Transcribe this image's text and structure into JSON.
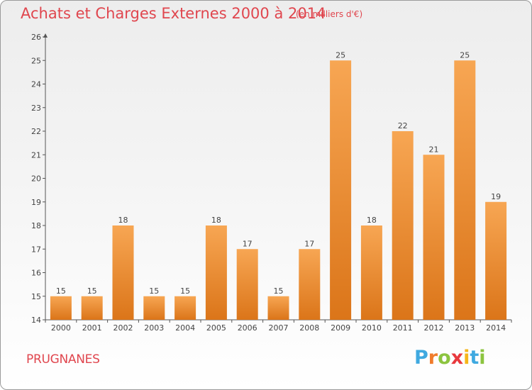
{
  "title": "Achats et Charges Externes 2000 à 2014",
  "subtitle": "(en milliers d'€)",
  "location": "PRUGNANES",
  "brand": {
    "letters": [
      "P",
      "r",
      "o",
      "x",
      "i",
      "t",
      "i"
    ],
    "colors": [
      "#3fa9e0",
      "#f07b2b",
      "#8cc43f",
      "#e8383d",
      "#f5b619",
      "#3fa9e0",
      "#8cc43f"
    ]
  },
  "chart_data": {
    "type": "bar",
    "categories": [
      "2000",
      "2001",
      "2002",
      "2003",
      "2004",
      "2005",
      "2006",
      "2007",
      "2008",
      "2009",
      "2010",
      "2011",
      "2012",
      "2013",
      "2014"
    ],
    "values": [
      15,
      15,
      18,
      15,
      15,
      18,
      17,
      15,
      17,
      25,
      18,
      22,
      21,
      25,
      19
    ],
    "ylim": [
      14,
      26
    ],
    "yticks": [
      14,
      15,
      16,
      17,
      18,
      19,
      20,
      21,
      22,
      23,
      24,
      25,
      26
    ],
    "bar_color_top": "#f7a653",
    "bar_color_bottom": "#db7519",
    "grid": false
  }
}
